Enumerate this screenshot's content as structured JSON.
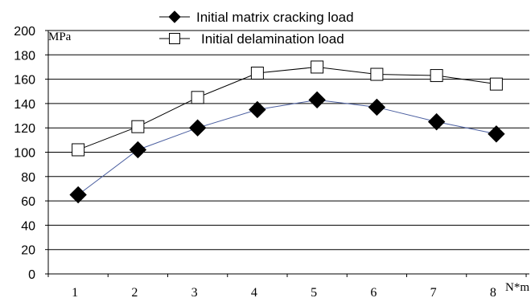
{
  "chart_data": {
    "type": "line",
    "title": "",
    "x": [
      1,
      2,
      3,
      4,
      5,
      6,
      7,
      8
    ],
    "xlabel": "N*m",
    "ylabel": "MPa",
    "ylim": [
      0,
      200
    ],
    "yticks": [
      0,
      20,
      40,
      60,
      80,
      100,
      120,
      140,
      160,
      180,
      200
    ],
    "grid": "horizontal",
    "legend_position": "top-center",
    "series": [
      {
        "name": "Initial matrix cracking load",
        "marker": "filled-diamond",
        "color": "#000000",
        "line_color": "#4b5fa0",
        "values": [
          65,
          102,
          120,
          135,
          143,
          137,
          125,
          115
        ]
      },
      {
        "name": "Initial delamination load",
        "marker": "open-square",
        "color": "#000000",
        "line_color": "#000000",
        "values": [
          102,
          121,
          145,
          165,
          170,
          164,
          163,
          156
        ]
      }
    ]
  }
}
